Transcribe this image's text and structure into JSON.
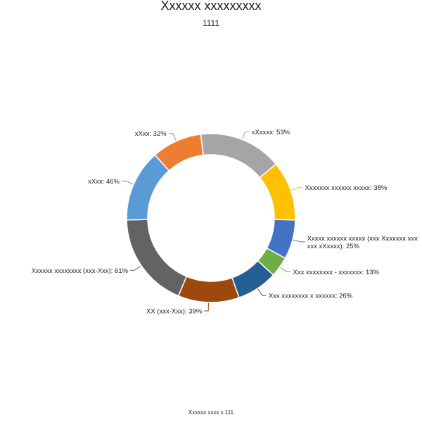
{
  "chart_data": {
    "type": "pie",
    "donut": true,
    "title": "Xxxxxx xxxxxxxxx",
    "subtitle": "1111",
    "footnote": "Xxxxxx xxxx x 111",
    "slices": [
      {
        "label": "xXxxxx: 53%",
        "value": 53,
        "color": "#a5a5a5"
      },
      {
        "label": "Xxxxxxx xxxxxx xxxxx: 38%",
        "value": 38,
        "color": "#ffc000"
      },
      {
        "label": "Xxxxx xxxxxx xxxxx (xxx Xxxxxxx xxx xxx xXxxxx): 25%",
        "label_lines": [
          "Xxxxx xxxxxx xxxxx (xxx Xxxxxxx xxx",
          "xxx xXxxxx): 25%"
        ],
        "value": 25,
        "color": "#4472c4"
      },
      {
        "label": "Xxx xxxxxxxx - xxxxxxx: 13%",
        "value": 13,
        "color": "#70ad47"
      },
      {
        "label": "Xxx xxxxxxxx x xxxxxx: 26%",
        "value": 26,
        "color": "#255e91"
      },
      {
        "label": "XX (xxx-Xxx): 39%",
        "value": 39,
        "color": "#9e480e"
      },
      {
        "label": "Xxxxxx xxxxxxxx (xxx-Xxx): 61%",
        "value": 61,
        "color": "#636363"
      },
      {
        "label": "xXxx: 46%",
        "value": 46,
        "color": "#5b9bd5"
      },
      {
        "label": "xXxx: 32%",
        "value": 32,
        "color": "#ed7d31"
      }
    ]
  }
}
